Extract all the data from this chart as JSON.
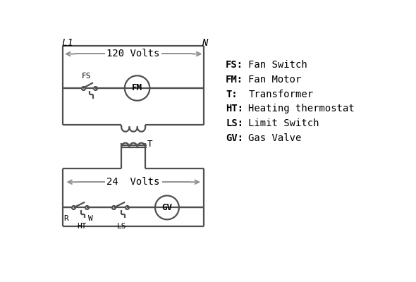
{
  "bg_color": "#ffffff",
  "line_color": "#505050",
  "arrow_color": "#909090",
  "text_color": "#000000",
  "legend": [
    [
      "FS:",
      "Fan Switch"
    ],
    [
      "FM:",
      "Fan Motor"
    ],
    [
      "T:",
      "Transformer"
    ],
    [
      "HT:",
      "Heating thermostat"
    ],
    [
      "LS:",
      "Limit Switch"
    ],
    [
      "GV:",
      "Gas Valve"
    ]
  ],
  "lw": 1.6,
  "font": "DejaVu Sans Mono"
}
